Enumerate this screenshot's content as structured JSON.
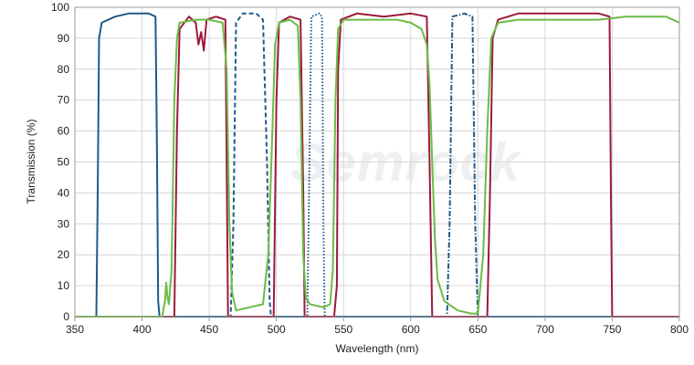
{
  "chart_data": {
    "type": "line",
    "title": "",
    "xlabel": "Wavelength (nm)",
    "ylabel": "Transmission (%)",
    "xlim": [
      350,
      800
    ],
    "ylim": [
      0,
      100
    ],
    "xticks": [
      350,
      400,
      450,
      500,
      550,
      600,
      650,
      700,
      750,
      800
    ],
    "yticks": [
      0,
      10,
      20,
      30,
      40,
      50,
      60,
      70,
      80,
      90,
      100
    ],
    "grid": true,
    "legend": "none",
    "watermark": "Semrock",
    "series": [
      {
        "color": "#1f5a8a",
        "style": "solid",
        "points": [
          [
            350,
            0
          ],
          [
            366,
            0
          ],
          [
            367,
            40
          ],
          [
            368,
            90
          ],
          [
            370,
            95
          ],
          [
            380,
            97
          ],
          [
            390,
            98
          ],
          [
            400,
            98
          ],
          [
            405,
            98
          ],
          [
            410,
            97
          ],
          [
            411,
            60
          ],
          [
            412,
            5
          ],
          [
            413,
            0
          ],
          [
            800,
            0
          ]
        ]
      },
      {
        "color": "#1f5a8a",
        "style": "dashed",
        "points": [
          [
            350,
            0
          ],
          [
            466,
            0
          ],
          [
            468,
            30
          ],
          [
            470,
            95
          ],
          [
            475,
            98
          ],
          [
            485,
            98
          ],
          [
            490,
            96
          ],
          [
            493,
            50
          ],
          [
            495,
            5
          ],
          [
            496,
            0
          ],
          [
            800,
            0
          ]
        ]
      },
      {
        "color": "#1f5a8a",
        "style": "dotted",
        "points": [
          [
            350,
            0
          ],
          [
            523,
            0
          ],
          [
            524,
            30
          ],
          [
            526,
            97
          ],
          [
            532,
            98
          ],
          [
            534,
            97
          ],
          [
            535,
            30
          ],
          [
            536,
            0
          ],
          [
            800,
            0
          ]
        ]
      },
      {
        "color": "#1f5a8a",
        "style": "dashdot",
        "points": [
          [
            350,
            0
          ],
          [
            627,
            0
          ],
          [
            629,
            30
          ],
          [
            631,
            97
          ],
          [
            640,
            98
          ],
          [
            646,
            97
          ],
          [
            648,
            30
          ],
          [
            650,
            0
          ],
          [
            800,
            0
          ]
        ]
      },
      {
        "color": "#9b1b3a",
        "style": "solid",
        "points": [
          [
            350,
            0
          ],
          [
            424,
            0
          ],
          [
            426,
            60
          ],
          [
            428,
            93
          ],
          [
            435,
            97
          ],
          [
            440,
            95
          ],
          [
            442,
            88
          ],
          [
            444,
            92
          ],
          [
            446,
            86
          ],
          [
            448,
            96
          ],
          [
            455,
            97
          ],
          [
            462,
            96
          ],
          [
            463,
            50
          ],
          [
            464,
            0
          ],
          [
            498,
            0
          ],
          [
            500,
            70
          ],
          [
            502,
            95
          ],
          [
            510,
            97
          ],
          [
            518,
            96
          ],
          [
            520,
            40
          ],
          [
            521,
            0
          ],
          [
            543,
            0
          ],
          [
            545,
            10
          ],
          [
            546,
            80
          ],
          [
            548,
            96
          ],
          [
            560,
            98
          ],
          [
            580,
            97
          ],
          [
            600,
            98
          ],
          [
            612,
            97
          ],
          [
            614,
            50
          ],
          [
            616,
            0
          ],
          [
            657,
            0
          ],
          [
            659,
            40
          ],
          [
            661,
            90
          ],
          [
            665,
            96
          ],
          [
            680,
            98
          ],
          [
            700,
            98
          ],
          [
            720,
            98
          ],
          [
            740,
            98
          ],
          [
            748,
            97
          ],
          [
            749,
            40
          ],
          [
            750,
            0
          ],
          [
            800,
            0
          ]
        ]
      },
      {
        "color": "#6cbb45",
        "style": "solid",
        "points": [
          [
            350,
            0
          ],
          [
            415,
            0
          ],
          [
            417,
            5
          ],
          [
            418,
            11
          ],
          [
            419,
            6
          ],
          [
            420,
            4
          ],
          [
            422,
            15
          ],
          [
            424,
            70
          ],
          [
            426,
            90
          ],
          [
            428,
            95
          ],
          [
            440,
            96
          ],
          [
            450,
            96
          ],
          [
            460,
            95
          ],
          [
            463,
            80
          ],
          [
            465,
            30
          ],
          [
            467,
            8
          ],
          [
            470,
            2
          ],
          [
            480,
            3
          ],
          [
            490,
            4
          ],
          [
            494,
            20
          ],
          [
            497,
            60
          ],
          [
            499,
            88
          ],
          [
            502,
            95
          ],
          [
            510,
            96
          ],
          [
            516,
            94
          ],
          [
            518,
            70
          ],
          [
            520,
            20
          ],
          [
            522,
            6
          ],
          [
            525,
            4
          ],
          [
            535,
            3
          ],
          [
            540,
            4
          ],
          [
            542,
            15
          ],
          [
            544,
            70
          ],
          [
            546,
            93
          ],
          [
            550,
            96
          ],
          [
            570,
            96
          ],
          [
            590,
            96
          ],
          [
            600,
            95
          ],
          [
            608,
            93
          ],
          [
            612,
            88
          ],
          [
            614,
            75
          ],
          [
            616,
            50
          ],
          [
            618,
            25
          ],
          [
            620,
            12
          ],
          [
            625,
            5
          ],
          [
            635,
            2
          ],
          [
            645,
            1
          ],
          [
            650,
            1
          ],
          [
            654,
            20
          ],
          [
            657,
            60
          ],
          [
            660,
            90
          ],
          [
            665,
            95
          ],
          [
            680,
            96
          ],
          [
            700,
            96
          ],
          [
            720,
            96
          ],
          [
            740,
            96
          ],
          [
            760,
            97
          ],
          [
            780,
            97
          ],
          [
            790,
            97
          ],
          [
            800,
            95
          ]
        ]
      }
    ]
  }
}
